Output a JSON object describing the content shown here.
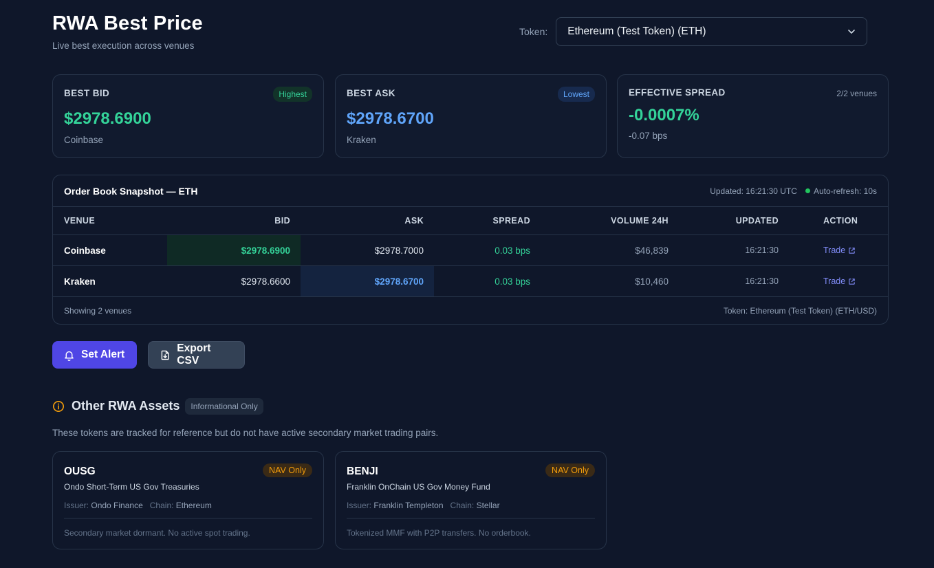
{
  "header": {
    "title": "RWA Best Price",
    "subtitle": "Live best execution across venues",
    "token_label": "Token:",
    "token_selected": "Ethereum (Test Token) (ETH)"
  },
  "stats": {
    "best_bid": {
      "label": "BEST BID",
      "badge": "Highest",
      "value": "$2978.6900",
      "venue": "Coinbase"
    },
    "best_ask": {
      "label": "BEST ASK",
      "badge": "Lowest",
      "value": "$2978.6700",
      "venue": "Kraken"
    },
    "spread": {
      "label": "EFFECTIVE SPREAD",
      "meta": "2/2 venues",
      "value": "-0.0007%",
      "bps": "-0.07 bps"
    }
  },
  "order_book": {
    "title": "Order Book Snapshot — ETH",
    "updated": "Updated: 16:21:30 UTC",
    "auto_refresh": "Auto-refresh: 10s",
    "columns": {
      "venue": "VENUE",
      "bid": "BID",
      "ask": "ASK",
      "spread": "SPREAD",
      "volume": "VOLUME 24H",
      "updated": "UPDATED",
      "action": "ACTION"
    },
    "rows": [
      {
        "venue": "Coinbase",
        "bid": "$2978.6900",
        "ask": "$2978.7000",
        "spread": "0.03 bps",
        "volume": "$46,839",
        "updated": "16:21:30",
        "action": "Trade"
      },
      {
        "venue": "Kraken",
        "bid": "$2978.6600",
        "ask": "$2978.6700",
        "spread": "0.03 bps",
        "volume": "$10,460",
        "updated": "16:21:30",
        "action": "Trade"
      }
    ],
    "footer_left": "Showing 2 venues",
    "footer_right": "Token: Ethereum (Test Token) (ETH/USD)"
  },
  "actions": {
    "set_alert": "Set Alert",
    "export_csv": "Export CSV"
  },
  "other_assets": {
    "title": "Other RWA Assets",
    "badge": "Informational Only",
    "description": "These tokens are tracked for reference but do not have active secondary market trading pairs.",
    "issuer_label": "Issuer:",
    "chain_label": "Chain:",
    "items": [
      {
        "symbol": "OUSG",
        "badge": "NAV Only",
        "name": "Ondo Short-Term US Gov Treasuries",
        "issuer": "Ondo Finance",
        "chain": "Ethereum",
        "note": "Secondary market dormant. No active spot trading."
      },
      {
        "symbol": "BENJI",
        "badge": "NAV Only",
        "name": "Franklin OnChain US Gov Money Fund",
        "issuer": "Franklin Templeton",
        "chain": "Stellar",
        "note": "Tokenized MMF with P2P transfers. No orderbook."
      }
    ]
  },
  "colors": {
    "background": "#0f172a",
    "accent": "#4f46e5",
    "bid_green": "#34d399",
    "ask_blue": "#60a5fa",
    "nav_amber": "#f59e0b"
  }
}
